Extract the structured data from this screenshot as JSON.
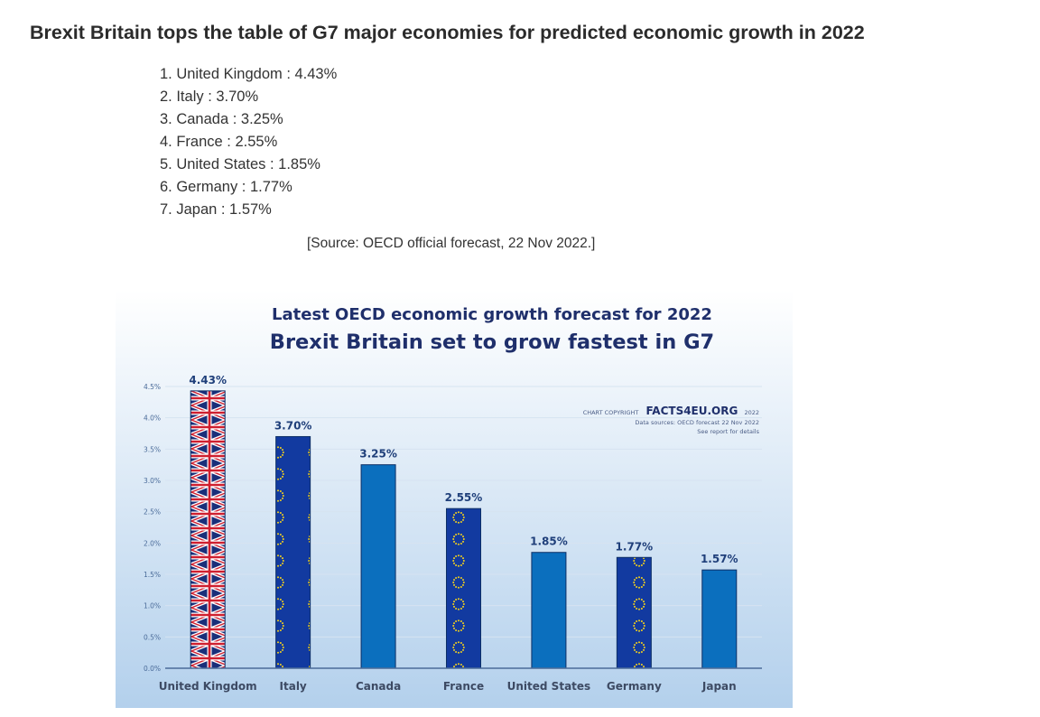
{
  "article": {
    "heading": "Brexit Britain tops the table of G7 major economies for predicted economic growth in 2022",
    "rankings": [
      "1. United Kingdom : 4.43%",
      "2. Italy : 3.70%",
      "3. Canada : 3.25%",
      "4. France : 2.55%",
      "5. United States : 1.85%",
      "6. Germany : 1.77%",
      "7. Japan : 1.57%"
    ],
    "source": "[Source: OECD official forecast, 22 Nov 2022.]"
  },
  "colors": {
    "title": "#1f2f6b",
    "bar_blue": "#0b6fbe",
    "eu_blue": "#123aa0",
    "eu_star": "#f6d21a",
    "uk_blue": "#1a2f7a",
    "uk_red": "#cf1f2f",
    "label": "#1f3f7a",
    "axis": "#4a6b99",
    "bg_top": "#ffffff",
    "bg_bottom": "#b3d0ec"
  },
  "chart_data": {
    "type": "bar",
    "title": "Latest OECD economic growth forecast for 2022",
    "subtitle": "Brexit Britain set to grow fastest in G7",
    "categories": [
      "United Kingdom",
      "Italy",
      "Canada",
      "France",
      "United States",
      "Germany",
      "Japan"
    ],
    "values": [
      4.43,
      3.7,
      3.25,
      2.55,
      1.85,
      1.77,
      1.57
    ],
    "value_labels": [
      "4.43%",
      "3.70%",
      "3.25%",
      "2.55%",
      "1.85%",
      "1.77%",
      "1.57%"
    ],
    "bar_styles": [
      "uk-flag",
      "eu-flag",
      "plain",
      "eu-flag",
      "plain",
      "eu-flag",
      "plain"
    ],
    "ylim": [
      0,
      4.5
    ],
    "yticks": [
      0,
      0.5,
      1.0,
      1.5,
      2.0,
      2.5,
      3.0,
      3.5,
      4.0,
      4.5
    ],
    "ytick_labels": [
      "0.0%",
      "0.5%",
      "1.0%",
      "1.5%",
      "2.0%",
      "2.5%",
      "3.0%",
      "3.5%",
      "4.0%",
      "4.5%"
    ],
    "xlabel": "",
    "ylabel": "",
    "grid": true,
    "legend": "none",
    "copyright": {
      "prefix": "CHART COPYRIGHT",
      "brand": "FACTS4EU.ORG",
      "year": "2022",
      "line2": "Data sources: OECD forecast 22 Nov 2022",
      "line3": "See report for details"
    }
  }
}
